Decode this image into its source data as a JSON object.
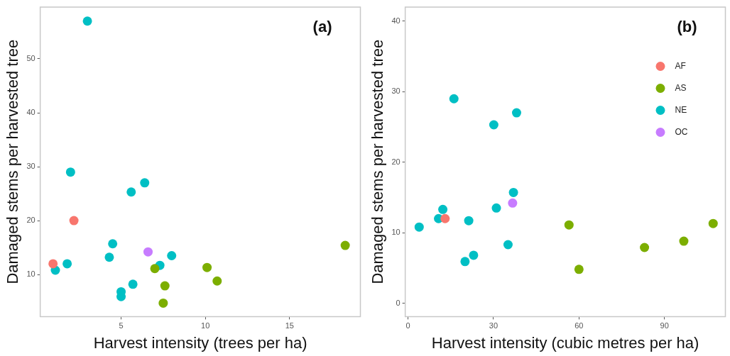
{
  "chart_data": [
    {
      "type": "scatter",
      "xlabel": "Harvest intensity (trees per ha)",
      "ylabel": "Damaged stems per harvested tree",
      "annotations": [
        "(a)"
      ],
      "xlim": [
        0.2,
        19.2
      ],
      "ylim": [
        2.2,
        59.6
      ],
      "xticks": [
        5,
        10,
        15
      ],
      "yticks": [
        10,
        20,
        30,
        40,
        50
      ],
      "grid": false,
      "legend": false,
      "marker": "circle",
      "series": [
        {
          "color": "#f8766d",
          "x": [
            0.96,
            2.2
          ],
          "values": [
            12,
            20
          ]
        },
        {
          "color": "#7cae00",
          "x": [
            18.3,
            7.0,
            10.1,
            10.7,
            7.6,
            7.5
          ],
          "values": [
            15.4,
            11.1,
            11.3,
            8.8,
            7.9,
            4.7
          ]
        },
        {
          "color": "#00bfc4",
          "x": [
            3.0,
            2.0,
            5.6,
            6.4,
            4.5,
            4.3,
            1.8,
            1.1,
            5.0,
            5.0,
            5.7,
            7.3,
            8.0
          ],
          "values": [
            57,
            29,
            25.3,
            27,
            15.7,
            13.2,
            12,
            10.8,
            6.8,
            5.9,
            8.2,
            11.7,
            13.5
          ]
        },
        {
          "color": "#c77cff",
          "x": [
            6.6
          ],
          "values": [
            14.2
          ]
        }
      ]
    },
    {
      "type": "scatter",
      "xlabel": "Harvest intensity (cubic metres per ha)",
      "ylabel": "Damaged stems per harvested tree",
      "annotations": [
        "(b)"
      ],
      "xlim": [
        -1,
        111.4
      ],
      "ylim": [
        -1.9,
        42
      ],
      "xticks": [
        0,
        30,
        60,
        90
      ],
      "yticks": [
        0,
        10,
        20,
        30,
        40
      ],
      "grid": false,
      "legend": "top right",
      "marker": "circle",
      "series": [
        {
          "name": "AF",
          "color": "#f8766d",
          "x": [
            13.0
          ],
          "values": [
            12.0
          ]
        },
        {
          "name": "AS",
          "color": "#7cae00",
          "x": [
            56.5,
            60,
            83,
            96.8,
            107.1
          ],
          "values": [
            11.1,
            4.8,
            7.9,
            8.8,
            11.3
          ]
        },
        {
          "name": "NE",
          "color": "#00bfc4",
          "x": [
            16.1,
            30.1,
            38.1,
            37.0,
            31.0,
            12.2,
            10.7,
            21.3,
            3.9,
            35.1,
            23.0,
            20.0
          ],
          "values": [
            29.0,
            25.3,
            27.0,
            15.7,
            13.5,
            13.3,
            12.0,
            11.7,
            10.8,
            8.3,
            6.8,
            5.9
          ]
        },
        {
          "name": "OC",
          "color": "#c77cff",
          "x": [
            36.7
          ],
          "values": [
            14.2
          ]
        }
      ]
    }
  ]
}
